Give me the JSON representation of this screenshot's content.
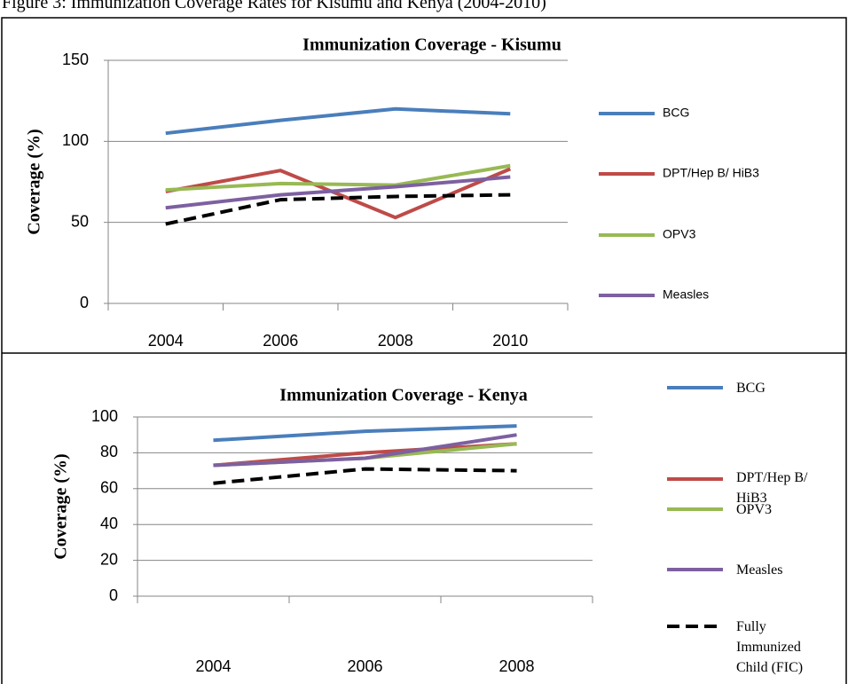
{
  "caption": "Figure 3: Immunization Coverage Rates for Kisumu and Kenya (2004-2010)",
  "chart_data": [
    {
      "type": "line",
      "title": "Immunization  Coverage - Kisumu",
      "y_label": "Coverage (%)",
      "categories": [
        "2004",
        "2006",
        "2008",
        "2010"
      ],
      "ylim": [
        0,
        150
      ],
      "yticks": [
        0,
        50,
        100,
        150
      ],
      "grid": true,
      "legend": "right",
      "series": [
        {
          "name": "BCG",
          "color": "#4a7ebb",
          "values": [
            105,
            113,
            120,
            117
          ]
        },
        {
          "name": "DPT/Hep B/ HiB3",
          "color": "#be4b48",
          "values": [
            69,
            82,
            53,
            83
          ]
        },
        {
          "name": "OPV3",
          "color": "#98b954",
          "values": [
            70,
            74,
            73,
            85
          ]
        },
        {
          "name": "Measles",
          "color": "#7d60a0",
          "values": [
            59,
            67,
            72,
            78
          ]
        },
        {
          "color": "#000000",
          "linestyle": "dashed",
          "values": [
            49,
            64,
            66,
            67
          ]
        }
      ]
    },
    {
      "type": "line",
      "title": "Immunization Coverage - Kenya",
      "y_label": "Coverage (%)",
      "categories": [
        "2004",
        "2006",
        "2008"
      ],
      "ylim": [
        0,
        100
      ],
      "yticks": [
        0,
        20,
        40,
        60,
        80,
        100
      ],
      "grid": true,
      "legend": "right",
      "series": [
        {
          "name": "BCG",
          "color": "#4a7ebb",
          "values": [
            87,
            92,
            95
          ]
        },
        {
          "name": "DPT/Hep B/ HiB3",
          "color": "#be4b48",
          "values": [
            73,
            80,
            85
          ]
        },
        {
          "name": "OPV3",
          "color": "#98b954",
          "values": [
            73,
            77,
            85
          ]
        },
        {
          "name": "Measles",
          "color": "#7d60a0",
          "values": [
            73,
            77,
            90
          ]
        },
        {
          "name": "Fully Immunized Child (FIC)",
          "color": "#000000",
          "linestyle": "dashed",
          "values": [
            63,
            71,
            70
          ]
        }
      ]
    }
  ]
}
